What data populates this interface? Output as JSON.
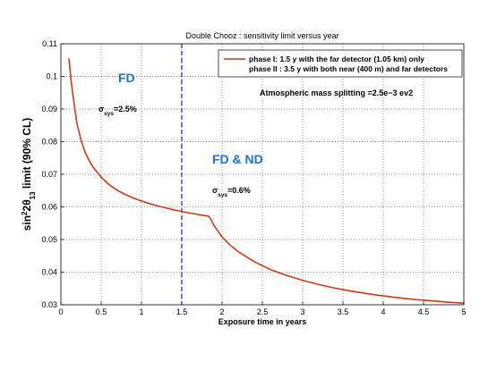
{
  "chart_data": {
    "type": "line",
    "title": "Double Chooz : sensitivity limit versus year",
    "xlabel": "Exposure time in years",
    "ylabel": {
      "prefix": "sin",
      "sup": "2",
      "mid": "2θ",
      "sub": "13",
      "suffix": " limit (90% CL)"
    },
    "xlim": [
      0,
      5
    ],
    "ylim": [
      0.03,
      0.11
    ],
    "x_ticks": [
      0,
      0.5,
      1,
      1.5,
      2,
      2.5,
      3,
      3.5,
      4,
      4.5,
      5
    ],
    "x_tick_labels": [
      "0",
      "0.5",
      "1",
      "1.5",
      "2",
      "2.5",
      "3",
      "3.5",
      "4",
      "4.5",
      "5"
    ],
    "y_ticks": [
      0.03,
      0.04,
      0.05,
      0.06,
      0.07,
      0.08,
      0.09,
      0.1,
      0.11
    ],
    "y_tick_labels": [
      "0.03",
      "0.04",
      "0.05",
      "0.06",
      "0.07",
      "0.08",
      "0.09",
      "0.1",
      "0.11"
    ],
    "grid": true,
    "legend_position": "top-right",
    "legend_entries": [
      "phase I: 1.5 y with the far detector (1.05 km) only",
      "phase II : 3.5 y with both near (400 m) and far detectors"
    ],
    "series": [
      {
        "color": "#d03a10",
        "x": [
          0.1,
          0.13,
          0.17,
          0.2,
          0.25,
          0.3,
          0.35,
          0.4,
          0.5,
          0.6,
          0.7,
          0.8,
          0.9,
          1.0,
          1.1,
          1.2,
          1.3,
          1.4,
          1.5,
          1.6,
          1.7,
          1.8,
          1.83,
          1.86,
          1.9,
          2.0,
          2.1,
          2.2,
          2.4,
          2.6,
          2.8,
          3.0,
          3.2,
          3.4,
          3.6,
          3.8,
          4.0,
          4.2,
          4.4,
          4.6,
          4.8,
          5.0
        ],
        "y": [
          0.1055,
          0.098,
          0.0905,
          0.0855,
          0.0805,
          0.0768,
          0.0742,
          0.0722,
          0.0691,
          0.0668,
          0.0651,
          0.0638,
          0.0627,
          0.0618,
          0.061,
          0.0603,
          0.0597,
          0.0591,
          0.0586,
          0.0581,
          0.0577,
          0.0573,
          0.0572,
          0.0563,
          0.0543,
          0.0508,
          0.0483,
          0.0463,
          0.0432,
          0.0408,
          0.039,
          0.0375,
          0.0362,
          0.0351,
          0.0342,
          0.0334,
          0.0327,
          0.0321,
          0.0316,
          0.0312,
          0.0308,
          0.0305
        ]
      }
    ],
    "vertical_line": {
      "x": 1.5,
      "color": "#1a1aa8",
      "style": "dashed"
    },
    "annotations": {
      "atm": "Atmospheric mass splitting =2.5e−3 ev2",
      "fd": "FD",
      "fdnd": "FD & ND",
      "sigma_symbol": "σ",
      "sigma_sub": "sys",
      "sigma1_value": "=2.5%",
      "sigma2_value": "=0.6%"
    }
  }
}
